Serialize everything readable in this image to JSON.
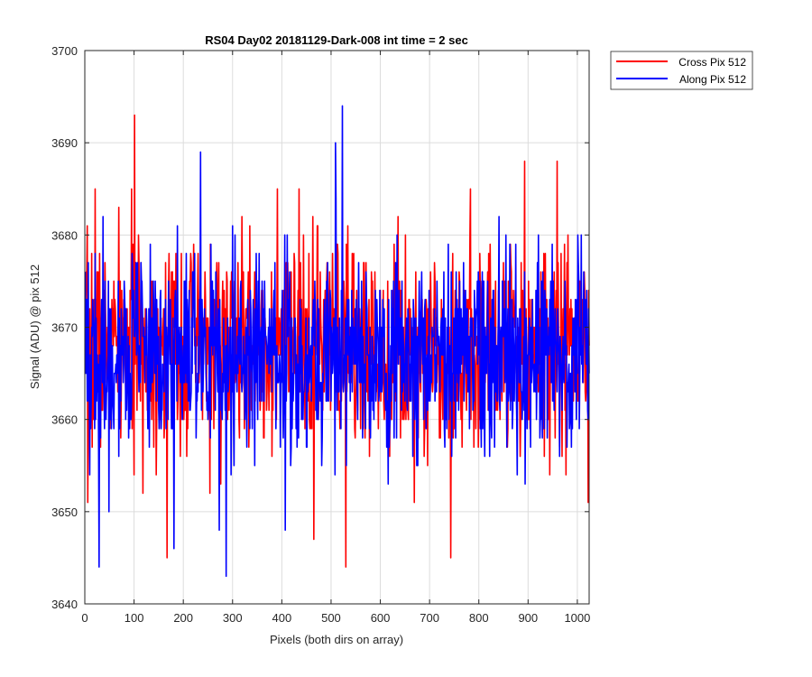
{
  "chart_data": {
    "type": "line",
    "title": "RS04 Day02 20181129-Dark-008 int time = 2 sec",
    "xlabel": "Pixels (both dirs on array)",
    "ylabel": "Signal (ADU) @ pix 512",
    "xlim": [
      0,
      1024
    ],
    "ylim": [
      3640,
      3700
    ],
    "xticks": [
      0,
      100,
      200,
      300,
      400,
      500,
      600,
      700,
      800,
      900,
      1000
    ],
    "yticks": [
      3640,
      3650,
      3660,
      3670,
      3680,
      3690,
      3700
    ],
    "grid": true,
    "legend_position": "outside-top-right",
    "series": [
      {
        "name": "Cross Pix 512",
        "color": "#ff0000",
        "seed": 7,
        "mean": 3668,
        "sd": 5.6,
        "n": 1024,
        "spikes": [
          {
            "x": 100,
            "y": 3693
          },
          {
            "x": 166,
            "y": 3645
          },
          {
            "x": 529,
            "y": 3644
          },
          {
            "x": 742,
            "y": 3645
          },
          {
            "x": 464,
            "y": 3647
          },
          {
            "x": 892,
            "y": 3688
          },
          {
            "x": 958,
            "y": 3688
          },
          {
            "x": 1021,
            "y": 3651
          },
          {
            "x": 5,
            "y": 3651
          },
          {
            "x": 20,
            "y": 3685
          }
        ]
      },
      {
        "name": "Along Pix 512",
        "color": "#0000ff",
        "seed": 19,
        "mean": 3667,
        "sd": 5.4,
        "n": 1024,
        "spikes": [
          {
            "x": 522,
            "y": 3694
          },
          {
            "x": 508,
            "y": 3690
          },
          {
            "x": 234,
            "y": 3689
          },
          {
            "x": 286,
            "y": 3643
          },
          {
            "x": 28,
            "y": 3644
          },
          {
            "x": 180,
            "y": 3646
          },
          {
            "x": 406,
            "y": 3648
          },
          {
            "x": 272,
            "y": 3648
          },
          {
            "x": 48,
            "y": 3650
          },
          {
            "x": 1000,
            "y": 3680
          }
        ]
      }
    ]
  }
}
